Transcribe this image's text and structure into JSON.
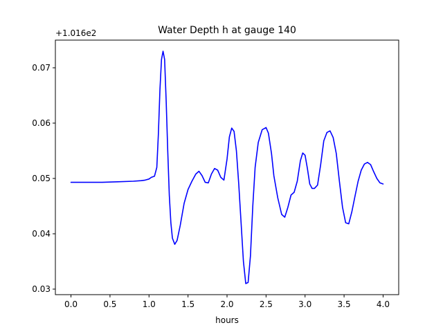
{
  "chart_data": {
    "type": "line",
    "title": "Water Depth h at gauge 140",
    "xlabel": "hours",
    "ylabel": "",
    "offset_label": "+1.016e2",
    "xlim": [
      -0.2,
      4.2
    ],
    "ylim": [
      0.029,
      0.075
    ],
    "xticks": [
      0.0,
      0.5,
      1.0,
      1.5,
      2.0,
      2.5,
      3.0,
      3.5,
      4.0
    ],
    "xtick_labels": [
      "0.0",
      "0.5",
      "1.0",
      "1.5",
      "2.0",
      "2.5",
      "3.0",
      "3.5",
      "4.0"
    ],
    "yticks": [
      0.03,
      0.04,
      0.05,
      0.06,
      0.07
    ],
    "ytick_labels": [
      "0.03",
      "0.04",
      "0.05",
      "0.06",
      "0.07"
    ],
    "grid": false,
    "series": [
      {
        "color": "#0000ff",
        "x": [
          0.0,
          0.2,
          0.4,
          0.6,
          0.8,
          0.9,
          0.95,
          1.0,
          1.03,
          1.07,
          1.1,
          1.12,
          1.14,
          1.16,
          1.18,
          1.2,
          1.22,
          1.24,
          1.26,
          1.28,
          1.3,
          1.33,
          1.36,
          1.4,
          1.45,
          1.5,
          1.55,
          1.6,
          1.64,
          1.68,
          1.72,
          1.76,
          1.8,
          1.84,
          1.88,
          1.92,
          1.96,
          2.0,
          2.03,
          2.06,
          2.09,
          2.12,
          2.15,
          2.18,
          2.21,
          2.24,
          2.27,
          2.3,
          2.33,
          2.36,
          2.4,
          2.45,
          2.5,
          2.53,
          2.57,
          2.6,
          2.65,
          2.7,
          2.74,
          2.78,
          2.82,
          2.86,
          2.9,
          2.94,
          2.97,
          3.0,
          3.03,
          3.06,
          3.09,
          3.12,
          3.16,
          3.2,
          3.24,
          3.28,
          3.32,
          3.36,
          3.4,
          3.44,
          3.48,
          3.52,
          3.56,
          3.6,
          3.64,
          3.68,
          3.72,
          3.76,
          3.8,
          3.84,
          3.88,
          3.92,
          3.96,
          4.0
        ],
        "y": [
          0.0493,
          0.0493,
          0.0493,
          0.0494,
          0.0495,
          0.0496,
          0.0497,
          0.0499,
          0.0502,
          0.0504,
          0.052,
          0.058,
          0.066,
          0.0715,
          0.073,
          0.0715,
          0.064,
          0.055,
          0.047,
          0.042,
          0.0392,
          0.0381,
          0.0388,
          0.0415,
          0.0455,
          0.048,
          0.0495,
          0.0508,
          0.0513,
          0.0505,
          0.0493,
          0.0492,
          0.0508,
          0.0518,
          0.0515,
          0.0502,
          0.0497,
          0.0535,
          0.0575,
          0.0591,
          0.0585,
          0.055,
          0.049,
          0.042,
          0.035,
          0.031,
          0.0312,
          0.036,
          0.045,
          0.052,
          0.0565,
          0.0588,
          0.0592,
          0.0582,
          0.0545,
          0.0505,
          0.0465,
          0.0435,
          0.043,
          0.0448,
          0.047,
          0.0475,
          0.0495,
          0.0532,
          0.0546,
          0.0542,
          0.0518,
          0.049,
          0.0482,
          0.0482,
          0.0488,
          0.0525,
          0.0568,
          0.0583,
          0.0586,
          0.0574,
          0.0545,
          0.0495,
          0.0448,
          0.042,
          0.0418,
          0.044,
          0.0468,
          0.0495,
          0.0515,
          0.0526,
          0.0529,
          0.0525,
          0.0512,
          0.05,
          0.0492,
          0.049
        ]
      }
    ]
  }
}
